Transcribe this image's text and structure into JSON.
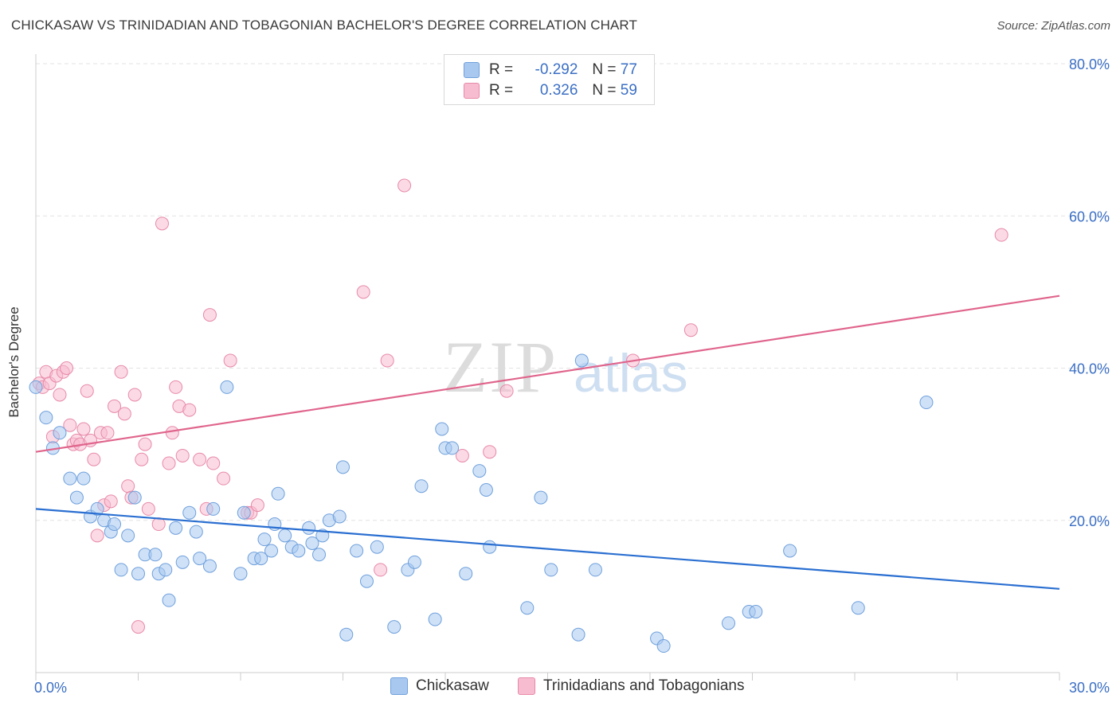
{
  "header": {
    "title": "CHICKASAW VS TRINIDADIAN AND TOBAGONIAN BACHELOR'S DEGREE CORRELATION CHART",
    "source": "Source: ZipAtlas.com"
  },
  "legend": {
    "rows": [
      {
        "r_label": "R =",
        "r_value": "-0.292",
        "n_label": "N =",
        "n_value": "77"
      },
      {
        "r_label": "R =",
        "r_value": "0.326",
        "n_label": "N =",
        "n_value": "59"
      }
    ]
  },
  "watermark": {
    "zip": "ZIP",
    "atlas": "atlas"
  },
  "colors": {
    "blue_fill": "#a8c8f0",
    "blue_stroke": "#6fa0dc",
    "blue_line": "#2a6fd1",
    "pink_fill": "#f7bcd0",
    "pink_stroke": "#e88aa8",
    "pink_line": "#e0648c",
    "axis_text": "#3b6fc4",
    "grid": "#e3e3e3"
  },
  "chart_data": {
    "type": "scatter",
    "title": "CHICKASAW VS TRINIDADIAN AND TOBAGONIAN BACHELOR'S DEGREE CORRELATION CHART",
    "xlabel": "",
    "ylabel": "Bachelor's Degree",
    "xlim": [
      0,
      30
    ],
    "ylim": [
      0,
      80
    ],
    "x_tick_labels": [
      "0.0%",
      "30.0%"
    ],
    "y_tick_labels": [
      "20.0%",
      "40.0%",
      "60.0%",
      "80.0%"
    ],
    "y_ticks": [
      20,
      40,
      60,
      80
    ],
    "grid": true,
    "legend_placement": "top-center",
    "series": [
      {
        "name": "Chickasaw",
        "color": "#a8c8f0",
        "trend": {
          "x": [
            0,
            30
          ],
          "y": [
            21.5,
            11.0
          ]
        },
        "points": [
          [
            0.0,
            37.5
          ],
          [
            0.3,
            33.5
          ],
          [
            0.5,
            29.5
          ],
          [
            0.7,
            31.5
          ],
          [
            1.0,
            25.5
          ],
          [
            1.2,
            23.0
          ],
          [
            1.4,
            25.5
          ],
          [
            1.6,
            20.5
          ],
          [
            1.8,
            21.5
          ],
          [
            2.0,
            20.0
          ],
          [
            2.2,
            18.5
          ],
          [
            2.3,
            19.5
          ],
          [
            2.5,
            13.5
          ],
          [
            2.7,
            18.0
          ],
          [
            2.9,
            23.0
          ],
          [
            3.0,
            13.0
          ],
          [
            3.2,
            15.5
          ],
          [
            3.5,
            15.5
          ],
          [
            3.6,
            13.0
          ],
          [
            3.8,
            13.5
          ],
          [
            3.9,
            9.5
          ],
          [
            4.1,
            19.0
          ],
          [
            4.3,
            14.5
          ],
          [
            4.5,
            21.0
          ],
          [
            4.7,
            18.5
          ],
          [
            4.8,
            15.0
          ],
          [
            5.1,
            14.0
          ],
          [
            5.2,
            21.5
          ],
          [
            5.6,
            37.5
          ],
          [
            6.0,
            13.0
          ],
          [
            6.1,
            21.0
          ],
          [
            6.4,
            15.0
          ],
          [
            6.6,
            15.0
          ],
          [
            6.7,
            17.5
          ],
          [
            6.9,
            16.0
          ],
          [
            7.0,
            19.5
          ],
          [
            7.1,
            23.5
          ],
          [
            7.3,
            18.0
          ],
          [
            7.5,
            16.5
          ],
          [
            7.7,
            16.0
          ],
          [
            8.0,
            19.0
          ],
          [
            8.1,
            17.0
          ],
          [
            8.3,
            15.5
          ],
          [
            8.4,
            18.0
          ],
          [
            8.6,
            20.0
          ],
          [
            8.9,
            20.5
          ],
          [
            9.0,
            27.0
          ],
          [
            9.1,
            5.0
          ],
          [
            9.4,
            16.0
          ],
          [
            9.7,
            12.0
          ],
          [
            10.0,
            16.5
          ],
          [
            10.5,
            6.0
          ],
          [
            10.9,
            13.5
          ],
          [
            11.1,
            14.5
          ],
          [
            11.3,
            24.5
          ],
          [
            11.7,
            7.0
          ],
          [
            11.9,
            32.0
          ],
          [
            12.0,
            29.5
          ],
          [
            12.2,
            29.5
          ],
          [
            12.6,
            13.0
          ],
          [
            13.0,
            26.5
          ],
          [
            13.2,
            24.0
          ],
          [
            13.3,
            16.5
          ],
          [
            14.4,
            8.5
          ],
          [
            14.8,
            23.0
          ],
          [
            15.1,
            13.5
          ],
          [
            15.9,
            5.0
          ],
          [
            16.0,
            41.0
          ],
          [
            16.4,
            13.5
          ],
          [
            18.2,
            4.5
          ],
          [
            18.4,
            3.5
          ],
          [
            20.3,
            6.5
          ],
          [
            20.9,
            8.0
          ],
          [
            21.1,
            8.0
          ],
          [
            22.1,
            16.0
          ],
          [
            24.1,
            8.5
          ],
          [
            26.1,
            35.5
          ]
        ]
      },
      {
        "name": "Trinidadians and Tobagonians",
        "color": "#f7bcd0",
        "trend": {
          "x": [
            0,
            30
          ],
          "y": [
            29.0,
            49.5
          ]
        },
        "points": [
          [
            0.1,
            38.0
          ],
          [
            0.2,
            37.5
          ],
          [
            0.3,
            39.5
          ],
          [
            0.4,
            38.0
          ],
          [
            0.5,
            31.0
          ],
          [
            0.6,
            39.0
          ],
          [
            0.7,
            36.5
          ],
          [
            0.8,
            39.5
          ],
          [
            0.9,
            40.0
          ],
          [
            1.0,
            32.5
          ],
          [
            1.1,
            30.0
          ],
          [
            1.2,
            30.5
          ],
          [
            1.3,
            30.0
          ],
          [
            1.4,
            32.0
          ],
          [
            1.5,
            37.0
          ],
          [
            1.6,
            30.5
          ],
          [
            1.7,
            28.0
          ],
          [
            1.8,
            18.0
          ],
          [
            1.9,
            31.5
          ],
          [
            2.0,
            22.0
          ],
          [
            2.1,
            31.5
          ],
          [
            2.2,
            22.5
          ],
          [
            2.3,
            35.0
          ],
          [
            2.5,
            39.5
          ],
          [
            2.6,
            34.0
          ],
          [
            2.7,
            24.5
          ],
          [
            2.8,
            23.0
          ],
          [
            2.9,
            36.5
          ],
          [
            3.0,
            6.0
          ],
          [
            3.1,
            28.0
          ],
          [
            3.2,
            30.0
          ],
          [
            3.3,
            21.5
          ],
          [
            3.6,
            19.5
          ],
          [
            3.7,
            59.0
          ],
          [
            3.9,
            27.5
          ],
          [
            4.0,
            31.5
          ],
          [
            4.1,
            37.5
          ],
          [
            4.2,
            35.0
          ],
          [
            4.3,
            28.5
          ],
          [
            4.5,
            34.5
          ],
          [
            4.8,
            28.0
          ],
          [
            5.0,
            21.5
          ],
          [
            5.1,
            47.0
          ],
          [
            5.2,
            27.5
          ],
          [
            5.5,
            25.5
          ],
          [
            5.7,
            41.0
          ],
          [
            6.2,
            21.0
          ],
          [
            6.3,
            21.0
          ],
          [
            6.5,
            22.0
          ],
          [
            9.6,
            50.0
          ],
          [
            10.1,
            13.5
          ],
          [
            10.3,
            41.0
          ],
          [
            10.8,
            64.0
          ],
          [
            12.5,
            28.5
          ],
          [
            13.3,
            29.0
          ],
          [
            13.8,
            37.0
          ],
          [
            17.5,
            41.0
          ],
          [
            19.2,
            45.0
          ],
          [
            28.3,
            57.5
          ]
        ]
      }
    ]
  },
  "bottom_legend": {
    "items": [
      "Chickasaw",
      "Trinidadians and Tobagonians"
    ]
  }
}
